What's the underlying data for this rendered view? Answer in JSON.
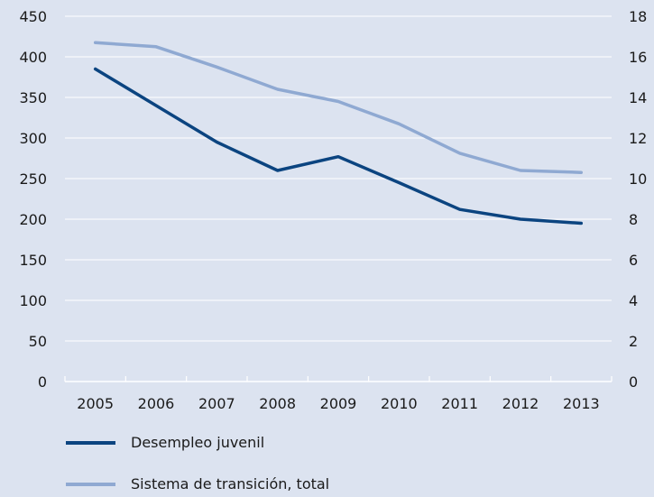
{
  "chart_data": {
    "type": "line",
    "title": "",
    "xlabel": "",
    "ylabel": "",
    "categories": [
      "2005",
      "2006",
      "2007",
      "2008",
      "2009",
      "2010",
      "2011",
      "2012",
      "2013"
    ],
    "axes": {
      "left": {
        "ylim": [
          0,
          450
        ],
        "ticks": [
          "0",
          "50",
          "100",
          "150",
          "200",
          "250",
          "300",
          "350",
          "400",
          "450"
        ]
      },
      "right": {
        "ylim": [
          0,
          18
        ],
        "ticks": [
          "0",
          "2",
          "4",
          "6",
          "8",
          "10",
          "12",
          "14",
          "16",
          "18"
        ]
      }
    },
    "grid": true,
    "legend_placement": "bottom",
    "series": [
      {
        "name": "Desempleo juvenil",
        "axis": "left",
        "color": "#0b4480",
        "values": [
          385,
          340,
          295,
          260,
          277,
          245,
          212,
          200,
          195
        ]
      },
      {
        "name": "Sistema de transición, total",
        "axis": "right",
        "color": "#8fa9d2",
        "values": [
          16.7,
          16.5,
          15.5,
          14.4,
          13.8,
          12.7,
          11.25,
          10.4,
          10.3
        ]
      }
    ]
  }
}
